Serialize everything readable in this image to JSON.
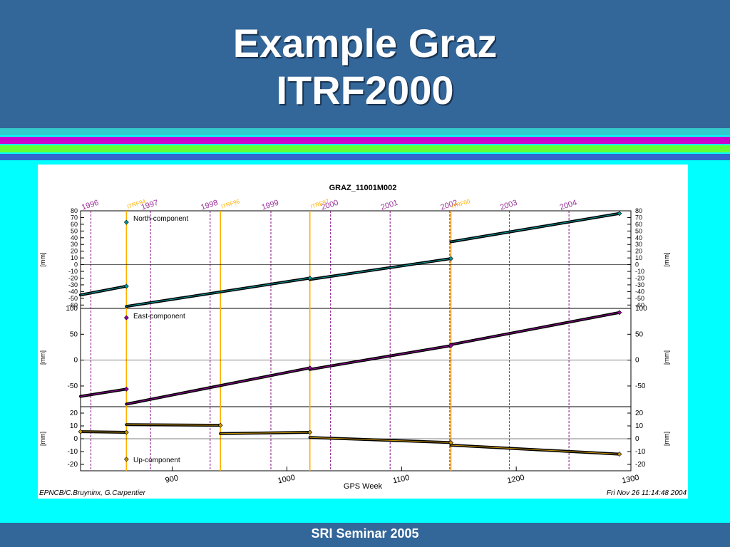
{
  "slide": {
    "title_line1": "Example Graz",
    "title_line2": "ITRF2000",
    "footer": "SRI Seminar 2005",
    "colors": {
      "header_bg": "#336699",
      "page_bg": "#00ffff",
      "stripe_cyan": "#33cccc",
      "stripe_magenta": "#cc00cc",
      "stripe_green": "#66ff33",
      "stripe_blue": "#3366cc"
    }
  },
  "figure": {
    "title": "GRAZ_11001M002",
    "credit": "EPNCB/C.Bruyninx, G.Carpentier",
    "date": "Fri Nov 26 11:14:48 2004"
  },
  "chart_data": {
    "type": "line",
    "title": "GRAZ_11001M002",
    "xlabel": "GPS Week",
    "xlim": [
      820,
      1300
    ],
    "xticks": [
      900,
      1000,
      1100,
      1200,
      1300
    ],
    "years": [
      {
        "label": "1996",
        "week": 829
      },
      {
        "label": "1997",
        "week": 881
      },
      {
        "label": "1998",
        "week": 933
      },
      {
        "label": "1999",
        "week": 986
      },
      {
        "label": "2000",
        "week": 1038
      },
      {
        "label": "2001",
        "week": 1090
      },
      {
        "label": "2002",
        "week": 1142
      },
      {
        "label": "2003",
        "week": 1194
      },
      {
        "label": "2004",
        "week": 1246
      }
    ],
    "frames": [
      {
        "label": "ITRF94",
        "week": 860
      },
      {
        "label": "ITRF96",
        "week": 942
      },
      {
        "label": "ITRF97",
        "week": 1020
      },
      {
        "label": "ITRF00",
        "week": 1143
      }
    ],
    "panels": [
      {
        "name": "North-component",
        "ylabel": "[mm]",
        "ylim": [
          -65,
          80
        ],
        "yticks": [
          80,
          70,
          60,
          50,
          40,
          30,
          20,
          10,
          0,
          -10,
          -20,
          -30,
          -40,
          -50,
          -60
        ],
        "color": "#009999",
        "segments": [
          [
            [
              820,
              -45
            ],
            [
              860,
              -32
            ]
          ],
          [
            [
              860,
              -62
            ],
            [
              1020,
              -20
            ]
          ],
          [
            [
              1020,
              -22
            ],
            [
              1143,
              9
            ]
          ],
          [
            [
              1143,
              34
            ],
            [
              1290,
              76
            ]
          ]
        ],
        "markers": [
          [
            860,
            63
          ],
          [
            860,
            -32
          ],
          [
            1020,
            -20
          ],
          [
            1143,
            9
          ],
          [
            1290,
            76
          ]
        ]
      },
      {
        "name": "East-component",
        "ylabel": "[mm]",
        "ylim": [
          -90,
          100
        ],
        "yticks": [
          100,
          50,
          0,
          -50
        ],
        "color": "#990099",
        "segments": [
          [
            [
              820,
              -70
            ],
            [
              860,
              -56
            ]
          ],
          [
            [
              860,
              -85
            ],
            [
              1020,
              -15
            ]
          ],
          [
            [
              1020,
              -18
            ],
            [
              1143,
              28
            ]
          ],
          [
            [
              1143,
              30
            ],
            [
              1290,
              92
            ]
          ]
        ],
        "markers": [
          [
            860,
            82
          ],
          [
            860,
            -56
          ],
          [
            1020,
            -15
          ],
          [
            1143,
            28
          ],
          [
            1290,
            92
          ]
        ]
      },
      {
        "name": "Up-component",
        "ylabel": "[mm]",
        "ylim": [
          -25,
          25
        ],
        "yticks": [
          20,
          10,
          0,
          -10,
          -20
        ],
        "color": "#cc9900",
        "segments": [
          [
            [
              820,
              5.5
            ],
            [
              860,
              5
            ]
          ],
          [
            [
              860,
              11
            ],
            [
              942,
              10.5
            ]
          ],
          [
            [
              942,
              4
            ],
            [
              1020,
              5
            ]
          ],
          [
            [
              1020,
              1
            ],
            [
              1143,
              -3
            ]
          ],
          [
            [
              1143,
              -5
            ],
            [
              1290,
              -12
            ]
          ]
        ],
        "markers": [
          [
            820,
            5.5
          ],
          [
            860,
            5
          ],
          [
            942,
            10.5
          ],
          [
            1020,
            5
          ],
          [
            1143,
            -3
          ],
          [
            1290,
            -12
          ],
          [
            860,
            -16
          ]
        ]
      }
    ]
  }
}
